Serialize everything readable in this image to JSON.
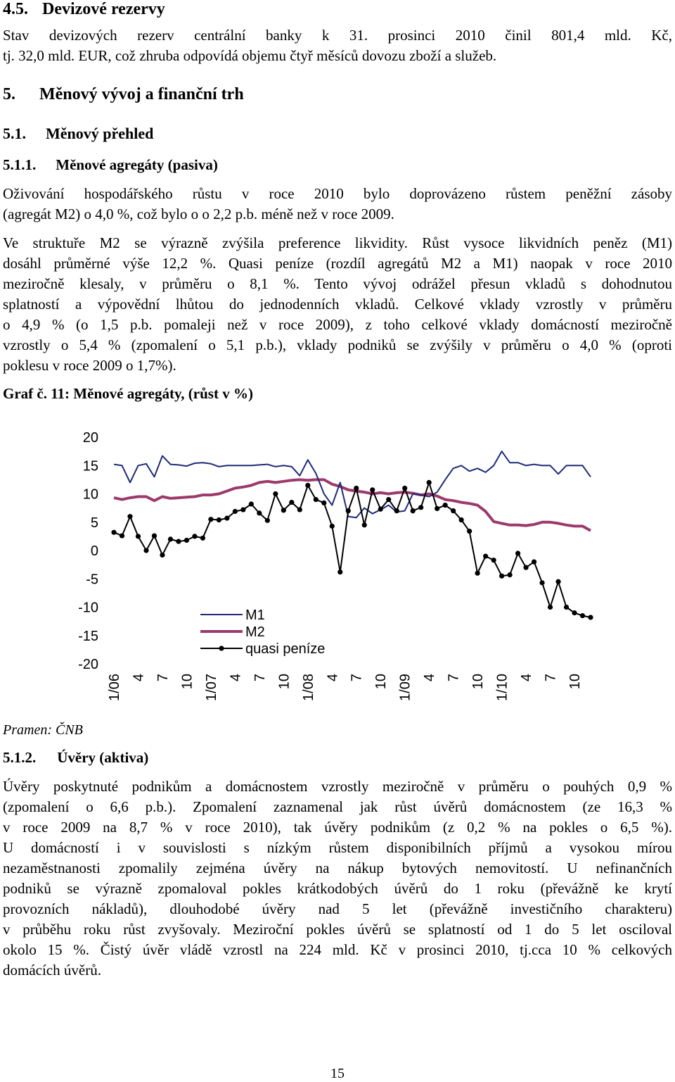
{
  "sections": {
    "s45_number": "4.5.",
    "s45_title": "Devizové rezervy",
    "s45_l1": "Stav devizových rezerv centrální banky k 31. prosinci 2010 činil 801,4 mld. Kč,",
    "s45_l2": "tj. 32,0 mld. EUR, což zhruba odpovídá objemu čtyř měsíců dovozu zboží a služeb.",
    "s5_number": "5.",
    "s5_title": "Měnový vývoj a finanční trh",
    "s51_number": "5.1.",
    "s51_title": "Měnový přehled",
    "s511_number": "5.1.1.",
    "s511_title": "Měnové agregáty (pasiva)",
    "p1_l1": "Oživování hospodářského růstu v roce 2010 bylo doprovázeno růstem peněžní zásoby",
    "p1_l2": "(agregát M2) o 4,0 %, což bylo o o 2,2 p.b. méně než v roce 2009.",
    "p2_l1": "Ve struktuře M2 se výrazně zvýšila preference likvidity. Růst vysoce likvidních peněz (M1)",
    "p2_l2": "dosáhl průměrné výše 12,2 %. Quasi peníze (rozdíl agregátů M2 a M1) naopak v roce 2010",
    "p2_l3": "meziročně klesaly, v průměru o 8,1 %. Tento vývoj odrážel přesun vkladů s dohodnutou",
    "p2_l4": "splatností a výpovědní lhůtou do jednodenních vkladů. Celkové vklady vzrostly v průměru",
    "p2_l5": "o 4,9 % (o 1,5 p.b. pomaleji než v roce 2009), z toho celkové vklady domácností meziročně",
    "p2_l6": "vzrostly o 5,4 % (zpomalení o 5,1 p.b.), vklady podniků se zvýšily v průměru o 4,0 % (oproti",
    "p2_l7": "poklesu v roce 2009 o 1,7%).",
    "graph_caption": "Graf č. 11: Měnové agregáty, (růst v %)",
    "source": "Pramen: ČNB",
    "s512_number": "5.1.2.",
    "s512_title": "Úvěry (aktiva)",
    "p3_l1": "Úvěry poskytnuté podnikům a domácnostem vzrostly meziročně v průměru o pouhých 0,9 %",
    "p3_l2": "(zpomalení o 6,6 p.b.). Zpomalení zaznamenal jak růst úvěrů domácnostem (ze 16,3 %",
    "p3_l3": "v roce 2009 na 8,7 % v roce 2010), tak úvěry podnikům (z 0,2 % na pokles o 6,5 %).",
    "p3_l4": "U domácností i v souvislosti s nízkým růstem disponibilních příjmů a vysokou mírou",
    "p3_l5": "nezaměstnanosti zpomalily zejména úvěry na nákup bytových nemovitostí. U nefinančních",
    "p3_l6": "podniků se výrazně zpomaloval pokles krátkodobých úvěrů do 1 roku (převážně ke krytí",
    "p3_l7": "provozních nákladů), dlouhodobé úvěry nad 5 let (převážně investičního charakteru)",
    "p3_l8": "v průběhu roku růst zvyšovaly. Meziroční pokles úvěrů se splatností od 1 do 5 let osciloval",
    "p3_l9": "okolo 15 %. Čistý úvěr vládě vzrostl na 224 mld. Kč v prosinci 2010, tj.cca 10 % celkových",
    "p3_l10": "domácích úvěrů.",
    "page_number": "15"
  },
  "chart_data": {
    "type": "line",
    "ylim": [
      -20,
      20
    ],
    "yticks": [
      "20",
      "15",
      "10",
      "5",
      "0",
      "-5",
      "-10",
      "-15",
      "-20"
    ],
    "ytick_values": [
      20,
      15,
      10,
      5,
      0,
      -5,
      -10,
      -15,
      -20
    ],
    "xtick_labels": [
      "1/06",
      "4",
      "7",
      "10",
      "1/07",
      "4",
      "7",
      "10",
      "1/08",
      "4",
      "7",
      "10",
      "1/09",
      "4",
      "7",
      "10",
      "1/10",
      "4",
      "7",
      "10"
    ],
    "xtick_months": [
      1,
      4,
      7,
      10,
      13,
      16,
      19,
      22,
      25,
      28,
      31,
      34,
      37,
      40,
      43,
      46,
      49,
      52,
      55,
      58
    ],
    "x_months": [
      1,
      2,
      3,
      4,
      5,
      6,
      7,
      8,
      9,
      10,
      11,
      12,
      13,
      14,
      15,
      16,
      17,
      18,
      19,
      20,
      21,
      22,
      23,
      24,
      25,
      26,
      27,
      28,
      29,
      30,
      31,
      32,
      33,
      34,
      35,
      36,
      37,
      38,
      39,
      40,
      41,
      42,
      43,
      44,
      45,
      46,
      47,
      48,
      49,
      50,
      51,
      52,
      53,
      54,
      55,
      56,
      57,
      58,
      59,
      60
    ],
    "legend_position": "bottom-right",
    "series": [
      {
        "name": "M1",
        "color": "#1f2a78",
        "markers": false,
        "values": [
          15.2,
          15.0,
          12.0,
          15.0,
          15.3,
          13.0,
          16.7,
          15.2,
          15.1,
          14.9,
          15.4,
          15.5,
          15.3,
          14.8,
          15.0,
          15.0,
          15.0,
          15.0,
          15.1,
          15.2,
          14.8,
          15.0,
          14.8,
          13.2,
          16.0,
          13.6,
          10.0,
          8.0,
          12.0,
          6.0,
          5.8,
          7.5,
          6.5,
          7.2,
          8.0,
          6.8,
          7.0,
          10.0,
          9.8,
          9.5,
          10.3,
          12.5,
          14.5,
          15.0,
          14.0,
          14.5,
          13.8,
          15.0,
          17.5,
          15.5,
          15.5,
          15.0,
          15.2,
          15.0,
          15.0,
          13.5,
          15.0,
          15.0,
          15.0,
          13.0
        ]
      },
      {
        "name": "M2",
        "color": "#9c3a6b",
        "markers": false,
        "values": [
          9.3,
          9.0,
          9.3,
          9.5,
          9.5,
          8.8,
          9.5,
          9.2,
          9.3,
          9.4,
          9.5,
          9.8,
          9.8,
          10.0,
          10.5,
          11.0,
          11.2,
          11.5,
          12.0,
          12.2,
          12.0,
          12.2,
          12.4,
          12.5,
          12.4,
          12.5,
          12.5,
          11.7,
          11.3,
          10.7,
          10.5,
          10.3,
          10.0,
          10.2,
          10.0,
          10.2,
          10.3,
          10.1,
          9.8,
          10.0,
          9.6,
          9.0,
          8.8,
          8.5,
          8.3,
          8.0,
          6.9,
          5.1,
          4.8,
          4.5,
          4.5,
          4.4,
          4.6,
          5.0,
          5.0,
          4.8,
          4.5,
          4.3,
          4.3,
          3.5
        ]
      },
      {
        "name": "quasi peníze",
        "color": "#000000",
        "markers": true,
        "values": [
          3.2,
          2.6,
          6.0,
          2.5,
          0.0,
          2.6,
          -0.8,
          2.0,
          1.6,
          1.8,
          2.5,
          2.2,
          5.5,
          5.4,
          5.7,
          6.9,
          7.2,
          8.2,
          6.6,
          5.3,
          10.0,
          7.1,
          8.5,
          7.2,
          11.5,
          9.0,
          8.4,
          4.3,
          -3.8,
          7.0,
          11.0,
          4.5,
          10.7,
          7.3,
          9.0,
          7.0,
          11.0,
          7.0,
          7.6,
          12.0,
          7.4,
          8.0,
          7.0,
          5.4,
          3.4,
          -4.0,
          -1.0,
          -1.7,
          -4.5,
          -4.3,
          -0.5,
          -3.0,
          -2.0,
          -5.7,
          -10.0,
          -5.5,
          -10.0,
          -11.0,
          -11.5,
          -11.8
        ]
      }
    ]
  }
}
